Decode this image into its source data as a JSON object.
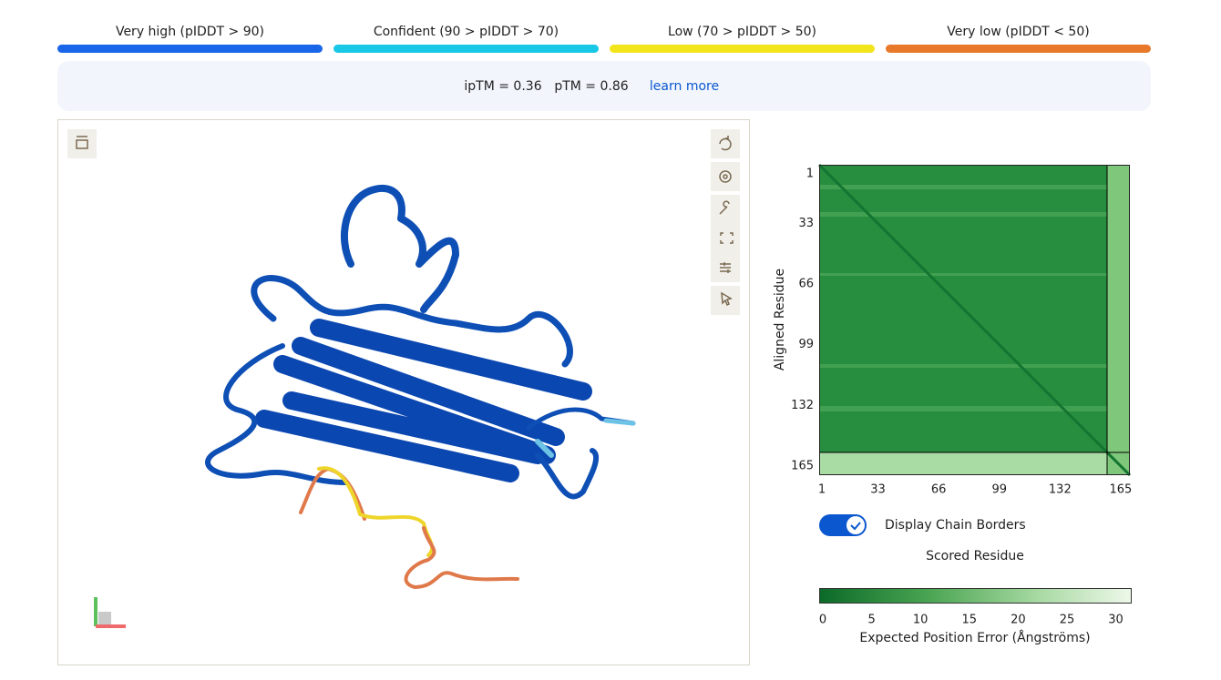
{
  "legend": {
    "items": [
      {
        "label": "Very high (pIDDT > 90)",
        "color": "#1a66e8"
      },
      {
        "label": "Confident (90 > pIDDT > 70)",
        "color": "#18c8e6"
      },
      {
        "label": "Low (70 > pIDDT > 50)",
        "color": "#f2e51c"
      },
      {
        "label": "Very low (pIDDT < 50)",
        "color": "#e8792b"
      }
    ]
  },
  "metrics": {
    "iptm": "ipTM = 0.36",
    "ptm": "pTM = 0.86",
    "link": "learn more"
  },
  "pae_plot": {
    "y_label": "Aligned Residue",
    "x_label": "Scored Residue",
    "lim": [
      1,
      170
    ],
    "ticks": [
      1,
      33,
      66,
      99,
      132,
      165
    ],
    "toggle_label": "Display Chain Borders",
    "colorbar": {
      "lim": [
        0,
        32
      ],
      "ticks": [
        0,
        5,
        10,
        15,
        20,
        25,
        30
      ],
      "label": "Expected Position Error (Ångströms)"
    }
  }
}
